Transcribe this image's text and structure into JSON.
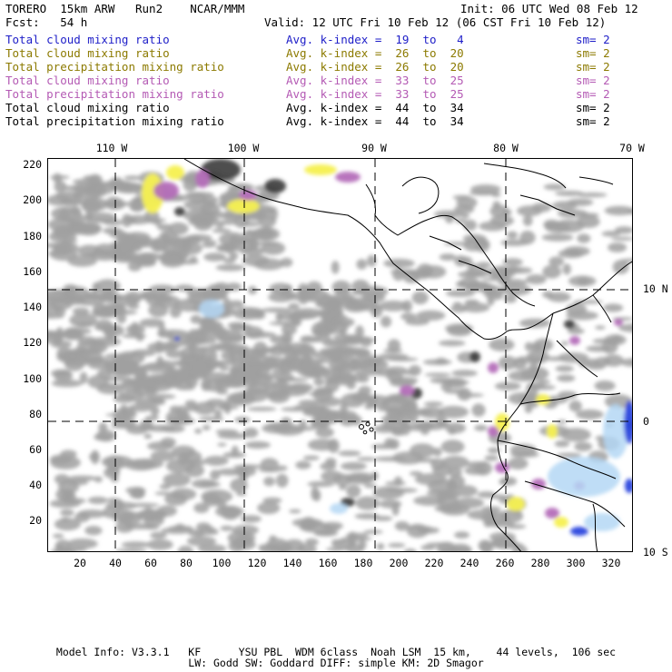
{
  "header": {
    "model": "TORERO  15km ARW   Run2    NCAR/MMM",
    "init": "Init: 06 UTC Wed 08 Feb 12",
    "fcst": "Fcst:   54 h",
    "valid": "Valid: 12 UTC Fri 10 Feb 12 (06 CST Fri 10 Feb 12)"
  },
  "legend": [
    {
      "name": "Total cloud mixing ratio",
      "avg": "Avg. k-index =  19  to   4",
      "sm": "sm= 2",
      "color": "#1e1ec8"
    },
    {
      "name": "Total cloud mixing ratio",
      "avg": "Avg. k-index =  26  to  20",
      "sm": "sm= 2",
      "color": "#8c7a00"
    },
    {
      "name": "Total precipitation mixing ratio",
      "avg": "Avg. k-index =  26  to  20",
      "sm": "sm= 2",
      "color": "#8c7a00"
    },
    {
      "name": "Total cloud mixing ratio",
      "avg": "Avg. k-index =  33  to  25",
      "sm": "sm= 2",
      "color": "#b45ab4"
    },
    {
      "name": "Total precipitation mixing ratio",
      "avg": "Avg. k-index =  33  to  25",
      "sm": "sm= 2",
      "color": "#b45ab4"
    },
    {
      "name": "Total cloud mixing ratio",
      "avg": "Avg. k-index =  44  to  34",
      "sm": "sm= 2",
      "color": "#000000"
    },
    {
      "name": "Total precipitation mixing ratio",
      "avg": "Avg. k-index =  44  to  34",
      "sm": "sm= 2",
      "color": "#000000"
    }
  ],
  "map": {
    "y_ticks": [
      "220",
      "200",
      "180",
      "160",
      "140",
      "120",
      "100",
      "80",
      "60",
      "40",
      "20"
    ],
    "x_ticks": [
      "20",
      "40",
      "60",
      "80",
      "100",
      "120",
      "140",
      "160",
      "180",
      "200",
      "220",
      "240",
      "260",
      "280",
      "300",
      "320"
    ],
    "lon_labels": [
      "110 W",
      "100 W",
      "90 W",
      "80 W",
      "70 W"
    ],
    "lat_labels": [
      "10 N",
      "0",
      "10 S"
    ],
    "colors": {
      "gray_cloud": "#a0a0a0",
      "dark_cloud": "#3c3c3c",
      "light_blue": "#b4d7f5",
      "blue": "#1e3cdc",
      "yellow": "#f5f050",
      "purple": "#b46eb9",
      "coast": "#000000"
    }
  },
  "footer": {
    "line1": "Model Info: V3.3.1   KF      YSU PBL  WDM 6class  Noah LSM  15 km,    44 levels,  106 sec",
    "line2": "LW: Godd SW: Goddard DIFF: simple KM: 2D Smagor"
  }
}
